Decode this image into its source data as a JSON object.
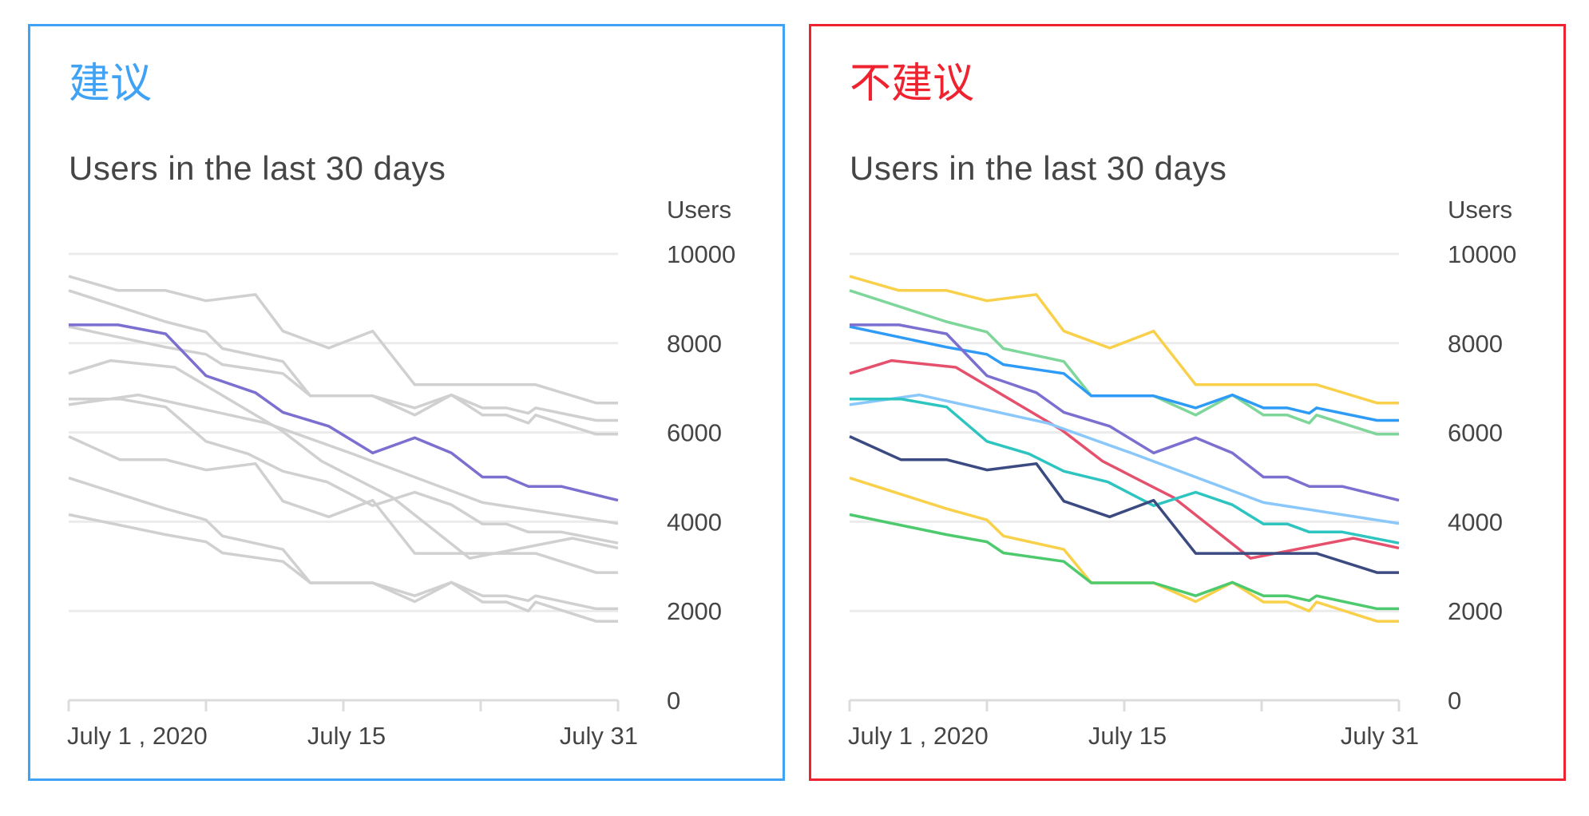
{
  "panels": [
    {
      "id": "recommended",
      "label": "建议",
      "label_color": "#3fa2f5",
      "border_color": "#3fa2f5",
      "subtitle": "Users in the last 30 days",
      "highlight": "purple",
      "muted_color": "#d0d0d0"
    },
    {
      "id": "not-recommended",
      "label": "不建议",
      "label_color": "#ee232f",
      "border_color": "#ee232f",
      "subtitle": "Users in the last 30 days",
      "highlight": "all",
      "muted_color": "#d0d0d0"
    }
  ],
  "chart_data": {
    "type": "line",
    "title": "Users in the last 30 days",
    "ylabel": "Users",
    "xlabel": "",
    "ylim": [
      0,
      10000
    ],
    "yticks": [
      0,
      2000,
      4000,
      6000,
      8000,
      10000
    ],
    "ytick_labels": [
      "0",
      "2000",
      "4000",
      "6000",
      "8000",
      "10000"
    ],
    "xlim": [
      0,
      30
    ],
    "x_unit": "days since July 1, 2020",
    "xticks": [
      0,
      7.5,
      15,
      22.5,
      30
    ],
    "xtick_labels": [
      {
        "label": "July 1 , 2020",
        "x": 0,
        "align": "start"
      },
      {
        "label": "July 15",
        "x": 15,
        "align": "middle"
      },
      {
        "label": "July 31",
        "x": 30,
        "align": "end"
      }
    ],
    "grid": true,
    "legend": "none",
    "series": [
      {
        "name": "yellow-top",
        "color": "#f8d04a",
        "points": [
          [
            0,
            9500
          ],
          [
            2.7,
            9180
          ],
          [
            5.3,
            9180
          ],
          [
            7.5,
            8950
          ],
          [
            10.2,
            9090
          ],
          [
            11.7,
            8270
          ],
          [
            14.2,
            7890
          ],
          [
            16.6,
            8270
          ],
          [
            18.9,
            7070
          ],
          [
            25.5,
            7070
          ],
          [
            28.8,
            6660
          ],
          [
            30,
            6660
          ]
        ]
      },
      {
        "name": "light-green",
        "color": "#7ed69a",
        "points": [
          [
            0,
            9180
          ],
          [
            5.3,
            8480
          ],
          [
            7.5,
            8250
          ],
          [
            8.4,
            7880
          ],
          [
            11.7,
            7590
          ],
          [
            13.2,
            6820
          ],
          [
            16.6,
            6820
          ],
          [
            18.9,
            6390
          ],
          [
            20.9,
            6840
          ],
          [
            22.6,
            6390
          ],
          [
            23.9,
            6390
          ],
          [
            25.1,
            6210
          ],
          [
            25.5,
            6390
          ],
          [
            28.8,
            5960
          ],
          [
            30,
            5960
          ]
        ]
      },
      {
        "name": "blue",
        "color": "#2e9bf6",
        "points": [
          [
            0,
            8370
          ],
          [
            5.3,
            7910
          ],
          [
            7.5,
            7750
          ],
          [
            8.4,
            7520
          ],
          [
            11.7,
            7320
          ],
          [
            13.2,
            6820
          ],
          [
            16.6,
            6820
          ],
          [
            18.9,
            6550
          ],
          [
            20.9,
            6840
          ],
          [
            22.6,
            6550
          ],
          [
            23.9,
            6550
          ],
          [
            25.1,
            6430
          ],
          [
            25.5,
            6550
          ],
          [
            28.8,
            6270
          ],
          [
            30,
            6270
          ]
        ]
      },
      {
        "name": "red",
        "color": "#e5506d",
        "points": [
          [
            0,
            7320
          ],
          [
            2.3,
            7610
          ],
          [
            5.8,
            7460
          ],
          [
            11.6,
            6050
          ],
          [
            13.8,
            5360
          ],
          [
            15.5,
            5000
          ],
          [
            17.7,
            4540
          ],
          [
            21.9,
            3180
          ],
          [
            27.5,
            3630
          ],
          [
            30,
            3410
          ]
        ]
      },
      {
        "name": "light-blue",
        "color": "#8ac8fc",
        "points": [
          [
            0,
            6620
          ],
          [
            3.8,
            6840
          ],
          [
            10.8,
            6210
          ],
          [
            15.5,
            5520
          ],
          [
            22.6,
            4430
          ],
          [
            30,
            3960
          ]
        ]
      },
      {
        "name": "teal",
        "color": "#2ec4c0",
        "points": [
          [
            0,
            6750
          ],
          [
            2.8,
            6750
          ],
          [
            5.3,
            6570
          ],
          [
            7.5,
            5800
          ],
          [
            9.8,
            5520
          ],
          [
            11.7,
            5130
          ],
          [
            14.1,
            4890
          ],
          [
            16.6,
            4360
          ],
          [
            18.9,
            4660
          ],
          [
            20.9,
            4380
          ],
          [
            22.6,
            3950
          ],
          [
            23.9,
            3950
          ],
          [
            25.1,
            3770
          ],
          [
            26.9,
            3770
          ],
          [
            30,
            3520
          ]
        ]
      },
      {
        "name": "navy",
        "color": "#3b4a80",
        "points": [
          [
            0,
            5910
          ],
          [
            2.8,
            5390
          ],
          [
            5.3,
            5390
          ],
          [
            7.5,
            5160
          ],
          [
            10.2,
            5300
          ],
          [
            11.7,
            4460
          ],
          [
            14.2,
            4110
          ],
          [
            16.6,
            4480
          ],
          [
            18.9,
            3290
          ],
          [
            25.5,
            3290
          ],
          [
            28.8,
            2860
          ],
          [
            30,
            2860
          ]
        ]
      },
      {
        "name": "yellow-bottom",
        "color": "#f8d04a",
        "points": [
          [
            0,
            4980
          ],
          [
            5.3,
            4290
          ],
          [
            7.5,
            4040
          ],
          [
            8.4,
            3680
          ],
          [
            11.7,
            3380
          ],
          [
            13.2,
            2630
          ],
          [
            16.6,
            2630
          ],
          [
            18.9,
            2210
          ],
          [
            20.9,
            2640
          ],
          [
            22.6,
            2200
          ],
          [
            23.9,
            2200
          ],
          [
            25.1,
            2000
          ],
          [
            25.5,
            2200
          ],
          [
            28.8,
            1770
          ],
          [
            30,
            1770
          ]
        ]
      },
      {
        "name": "green",
        "color": "#4dc96e",
        "points": [
          [
            0,
            4160
          ],
          [
            5.3,
            3710
          ],
          [
            7.5,
            3550
          ],
          [
            8.4,
            3300
          ],
          [
            11.7,
            3110
          ],
          [
            13.2,
            2630
          ],
          [
            16.6,
            2630
          ],
          [
            18.9,
            2340
          ],
          [
            20.9,
            2640
          ],
          [
            22.6,
            2340
          ],
          [
            23.9,
            2340
          ],
          [
            25.1,
            2230
          ],
          [
            25.5,
            2340
          ],
          [
            28.8,
            2050
          ],
          [
            30,
            2050
          ]
        ]
      },
      {
        "name": "purple",
        "color": "#7b6fd0",
        "points": [
          [
            0,
            8410
          ],
          [
            2.7,
            8410
          ],
          [
            5.3,
            8210
          ],
          [
            7.5,
            7270
          ],
          [
            10.2,
            6890
          ],
          [
            11.7,
            6450
          ],
          [
            14.2,
            6140
          ],
          [
            16.6,
            5540
          ],
          [
            18.9,
            5880
          ],
          [
            20.9,
            5540
          ],
          [
            22.6,
            5000
          ],
          [
            23.9,
            5000
          ],
          [
            25.1,
            4790
          ],
          [
            26.9,
            4790
          ],
          [
            30,
            4480
          ]
        ]
      }
    ]
  }
}
